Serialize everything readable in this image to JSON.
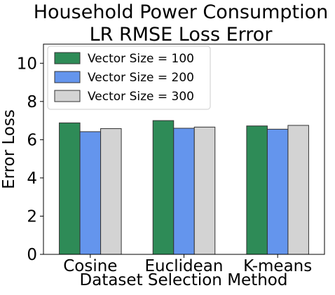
{
  "chart_data": {
    "type": "bar",
    "title_lines": [
      "Household Power Consumption",
      "LR RMSE Loss Error"
    ],
    "xlabel": "Dataset Selection Method",
    "ylabel": "Error Loss",
    "categories": [
      "Cosine",
      "Euclidean",
      "K-means"
    ],
    "series": [
      {
        "name": "Vector Size = 100",
        "values": [
          6.88,
          7.0,
          6.72
        ],
        "color": "#2e8b57"
      },
      {
        "name": "Vector Size = 200",
        "values": [
          6.42,
          6.6,
          6.55
        ],
        "color": "#6495ed"
      },
      {
        "name": "Vector Size = 300",
        "values": [
          6.58,
          6.66,
          6.75
        ],
        "color": "#d3d3d3"
      }
    ],
    "ylim": [
      0,
      11
    ],
    "yticks": [
      0,
      2,
      4,
      6,
      8,
      10
    ],
    "grid": false,
    "legend_position": "top-left"
  }
}
